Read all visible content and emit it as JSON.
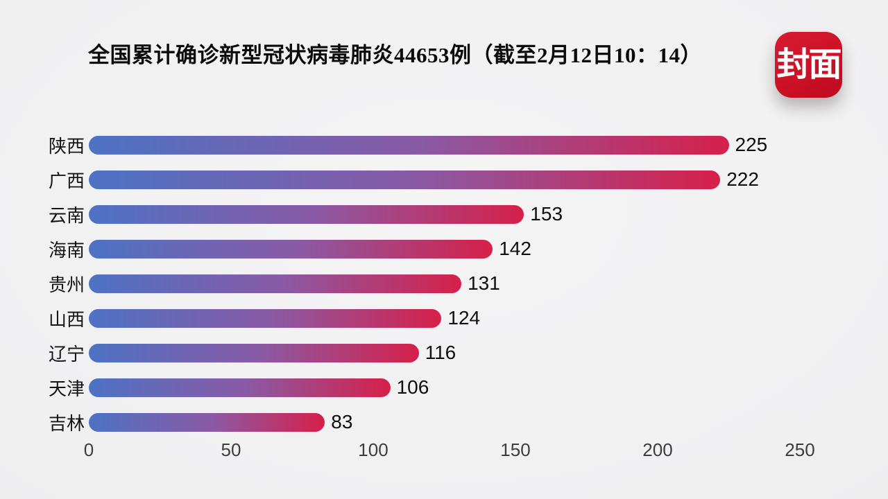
{
  "title": "全国累计确诊新型冠状病毒肺炎44653例（截至2月12日10：14）",
  "logo": {
    "text": "封面",
    "bg_color": "#cc1126",
    "text_color": "#ffffff"
  },
  "chart_data": {
    "type": "bar",
    "orientation": "horizontal",
    "title": "全国累计确诊新型冠状病毒肺炎44653例（截至2月12日10：14）",
    "categories": [
      "陕西",
      "广西",
      "云南",
      "海南",
      "贵州",
      "山西",
      "辽宁",
      "天津",
      "吉林"
    ],
    "values": [
      225,
      222,
      153,
      142,
      131,
      124,
      116,
      106,
      83
    ],
    "xlabel": "",
    "ylabel": "",
    "xlim": [
      0,
      250
    ],
    "x_ticks": [
      "0",
      "50",
      "100",
      "150",
      "200",
      "250"
    ],
    "grid": false,
    "legend": false,
    "value_labels": "end-of-bar",
    "bar_gradient": [
      "#4d72c4",
      "#8a5aa5",
      "#d6204a"
    ],
    "background_color": "#f0f0f1"
  }
}
